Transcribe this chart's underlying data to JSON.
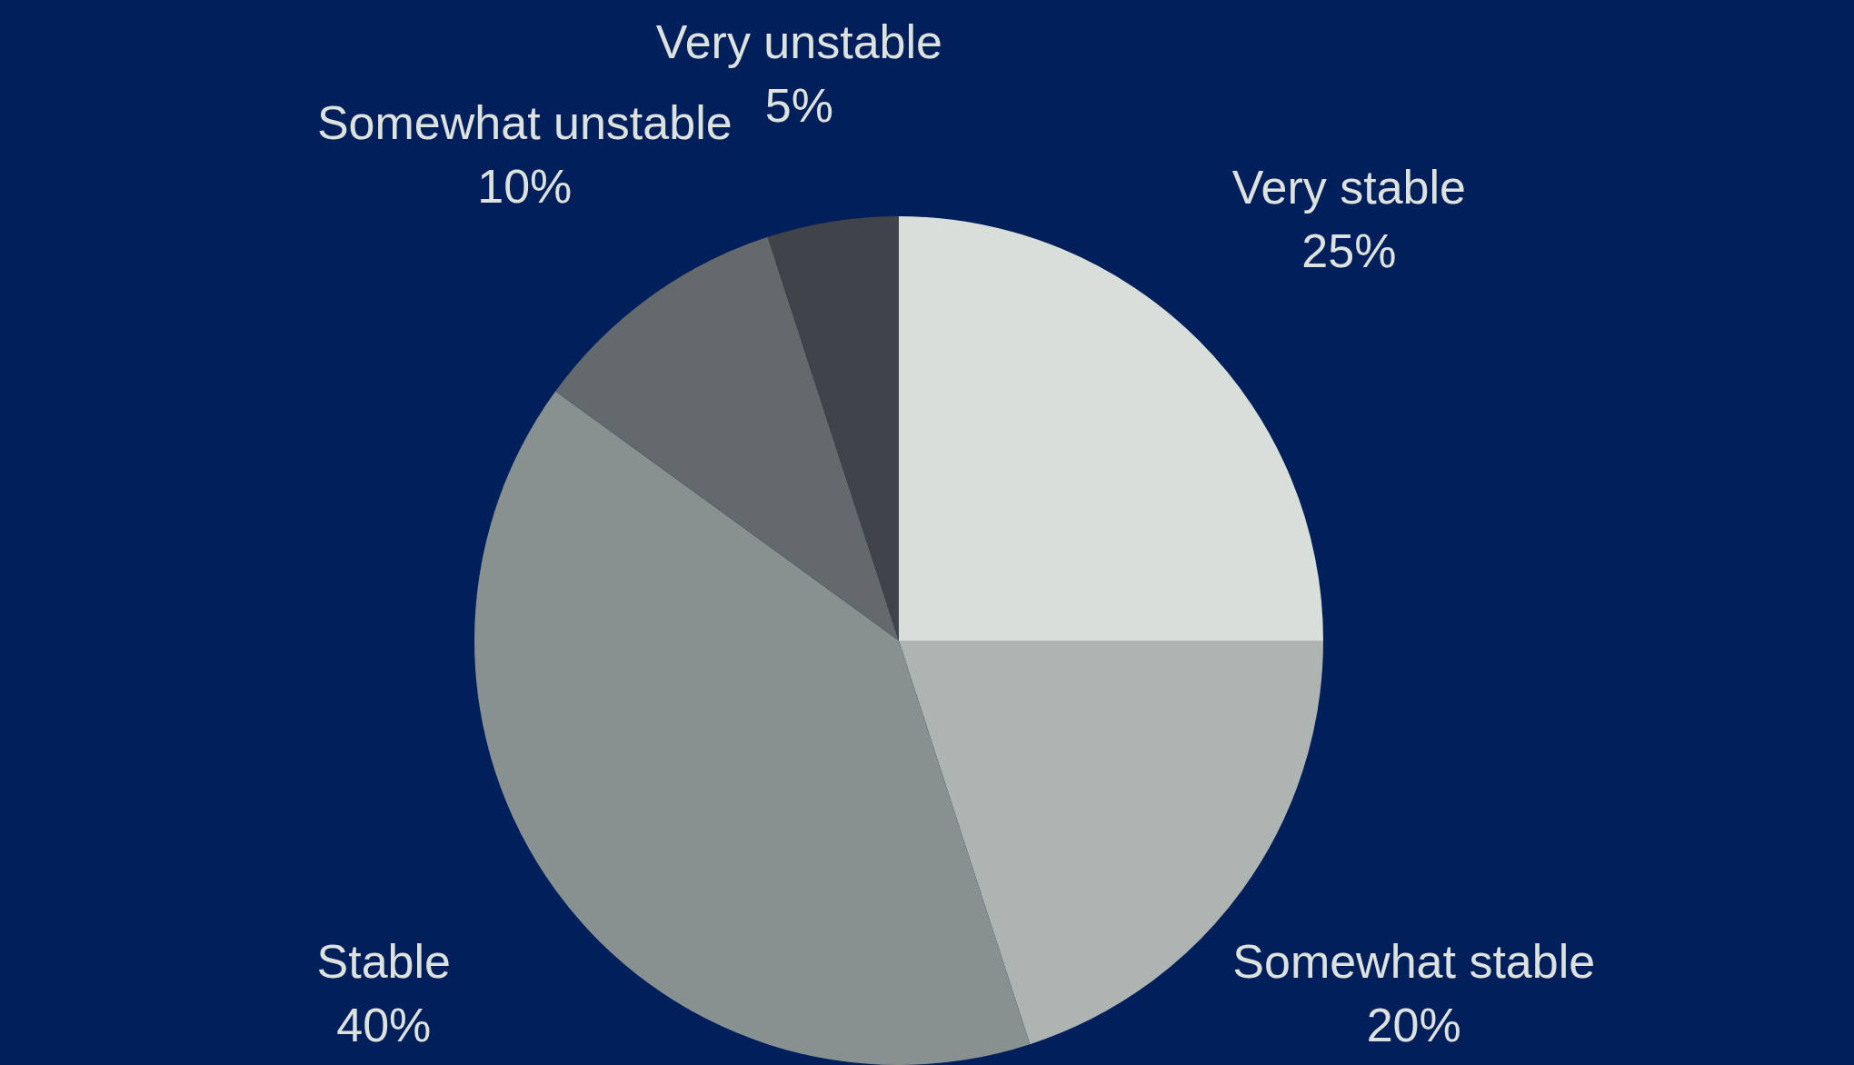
{
  "chart_data": {
    "type": "pie",
    "categories": [
      "Very stable",
      "Somewhat stable",
      "Stable",
      "Somewhat unstable",
      "Very unstable"
    ],
    "values": [
      25,
      20,
      40,
      10,
      5
    ],
    "value_labels": [
      "25%",
      "20%",
      "40%",
      "10%",
      "5%"
    ],
    "colors": [
      "#d8dfdb",
      "#adb4b1",
      "#889190",
      "#646a6c",
      "#404349"
    ],
    "legend": false
  }
}
